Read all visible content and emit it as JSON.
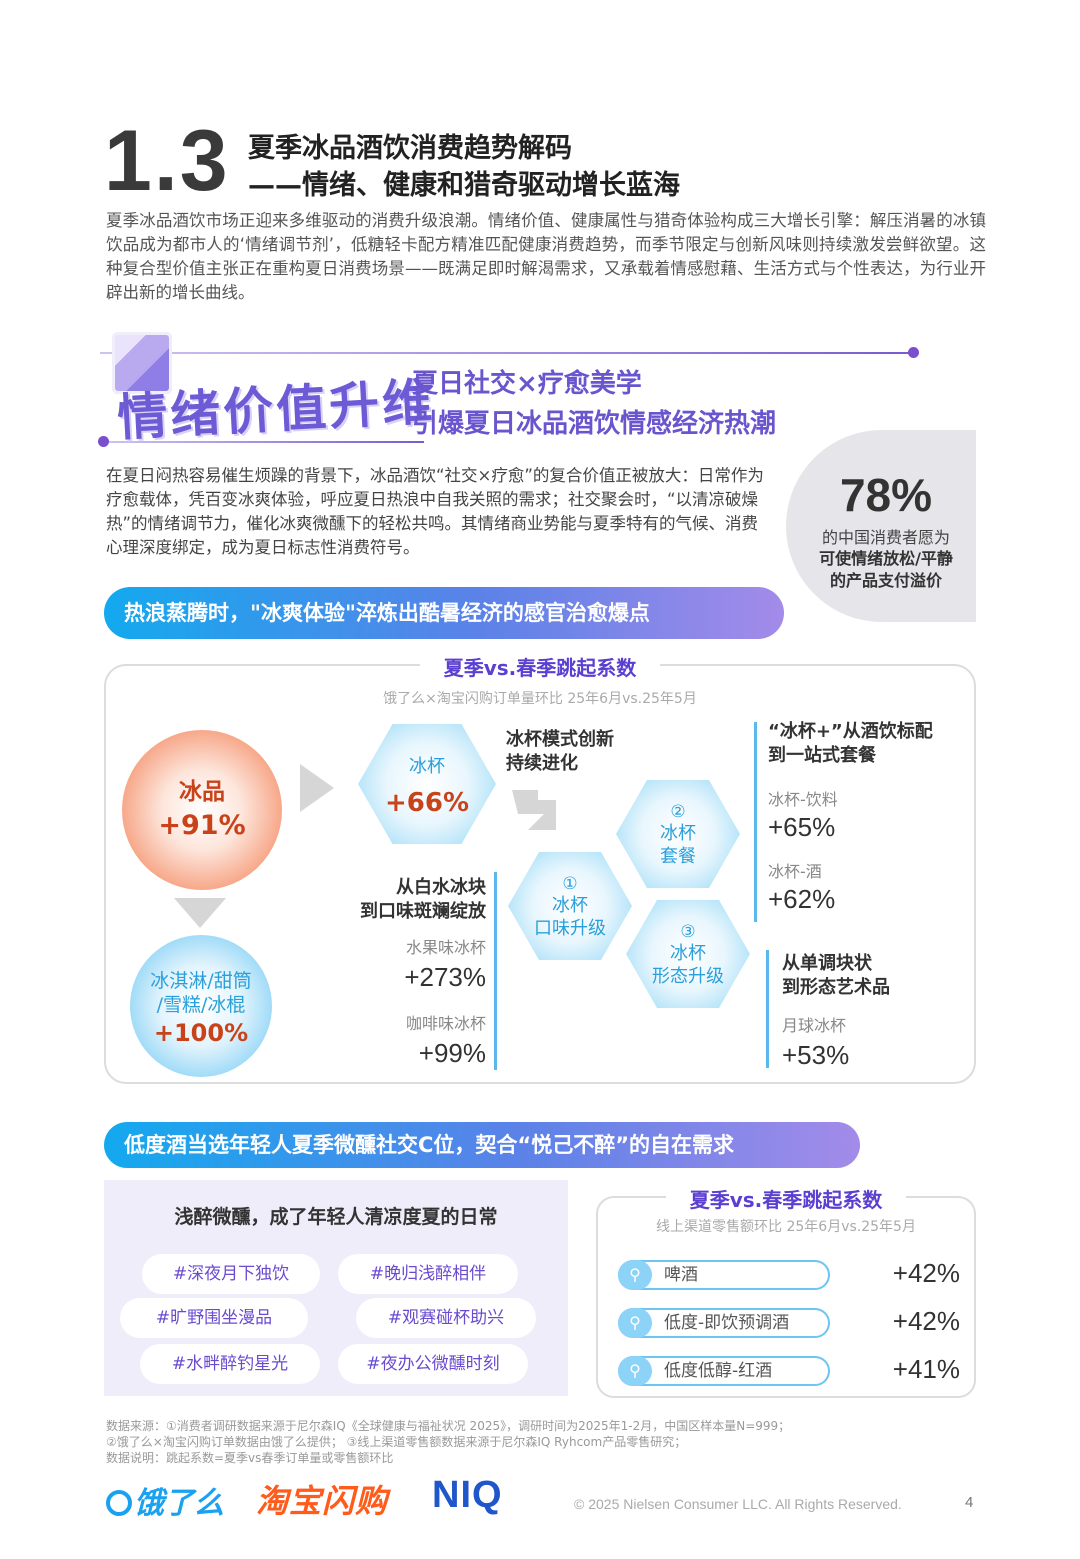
{
  "header": {
    "section_number": "1.3",
    "title_line1": "夏季冰品酒饮消费趋势解码",
    "title_line2": "——情绪、健康和猎奇驱动增长蓝海",
    "intro": "夏季冰品酒饮市场正迎来多维驱动的消费升级浪潮。情绪价值、健康属性与猎奇体验构成三大增长引擎：解压消暑的冰镇饮品成为都市人的‘情绪调节剂’，低糖轻卡配方精准匹配健康消费趋势，而季节限定与创新风味则持续激发尝鲜欲望。这种复合型价值主张正在重构夏日消费场景——既满足即时解渴需求，又承载着情感慰藉、生活方式与个性表达，为行业开辟出新的增长曲线。"
  },
  "banner": {
    "big_text": "情绪价值升维",
    "sub_line1": "夏日社交×疗愈美学",
    "sub_line2": "引爆夏日冰品酒饮情感经济热潮"
  },
  "emotion": {
    "paragraph": "在夏日闷热容易催生烦躁的背景下，冰品酒饮“社交×疗愈”的复合价值正被放大：日常作为疗愈载体，凭百变冰爽体验，呼应夏日热浪中自我关照的需求；社交聚会时，“以清凉破燥热”的情绪调节力，催化冰爽微醺下的轻松共鸣。其情绪商业势能与夏季特有的气候、消费心理深度绑定，成为夏日标志性消费符号。",
    "stat_value": "78%",
    "stat_line1": "的中国消费者愿为",
    "stat_line2": "可使情绪放松/平静",
    "stat_line3": "的产品支付溢价"
  },
  "section1": {
    "headline": "热浪蒸腾时，\"冰爽体验\"淬炼出酷暑经济的感官治愈爆点",
    "box_title": "夏季vs.春季跳起系数",
    "box_subtitle": "饿了么×淘宝闪购订单量环比 25年6月vs.25年5月",
    "ice_product_label": "冰品",
    "ice_product_value": "+91%",
    "icecream_label": "冰淇淋/甜筒/雪糕/冰棍",
    "icecream_line1": "冰淇淋/甜筒",
    "icecream_line2": "/雪糕/冰棍",
    "icecream_value": "+100%",
    "icecup_label": "冰杯",
    "icecup_value": "+66%",
    "innovation_line1": "冰杯模式创新",
    "innovation_line2": "持续进化",
    "hex1_num": "①",
    "hex1_line1": "冰杯",
    "hex1_line2": "口味升级",
    "hex2_num": "②",
    "hex2_line1": "冰杯",
    "hex2_line2": "套餐",
    "hex3_num": "③",
    "hex3_line1": "冰杯",
    "hex3_line2": "形态升级",
    "flavor_title_line1": "从白水冰块",
    "flavor_title_line2": "到口味斑斓绽放",
    "flavor_items": [
      {
        "label": "水果味冰杯",
        "value": "+273%"
      },
      {
        "label": "咖啡味冰杯",
        "value": "+99%"
      }
    ],
    "combo_title_line1": "“冰杯+”从酒饮标配",
    "combo_title_line2": "到一站式套餐",
    "combo_items": [
      {
        "label": "冰杯-饮料",
        "value": "+65%"
      },
      {
        "label": "冰杯-酒",
        "value": "+62%"
      }
    ],
    "shape_title_line1": "从单调块状",
    "shape_title_line2": "到形态艺术品",
    "shape_items": [
      {
        "label": "月球冰杯",
        "value": "+53%"
      }
    ]
  },
  "section2": {
    "headline": "低度酒当选年轻人夏季微醺社交C位，契合“悦己不醉”的自在需求",
    "panel_title": "浅醉微醺，成了年轻人清凉度夏的日常",
    "tags": [
      "#深夜月下独饮",
      "#晚归浅醉相伴",
      "#旷野围坐漫品",
      "#观赛碰杯助兴",
      "#水畔醉钓星光",
      "#夜办公微醺时刻"
    ],
    "box_title": "夏季vs.春季跳起系数",
    "box_subtitle": "线上渠道零售额环比 25年6月vs.25年5月",
    "bars": [
      {
        "label": "啤酒",
        "value": "+42%"
      },
      {
        "label": "低度-即饮预调酒",
        "value": "+42%"
      },
      {
        "label": "低度低醇-红酒",
        "value": "+41%"
      }
    ]
  },
  "footer": {
    "source_line1": "数据来源：①消费者调研数据来源于尼尔森IQ《全球健康与福祉状况 2025》，调研时间为2025年1-2月，中国区样本量N=999；",
    "source_line2": "②饿了么×淘宝闪购订单数据由饿了么提供； ③线上渠道零售额数据来源于尼尔森IQ Ryhcom产品零售研究；",
    "source_line3": "数据说明：跳起系数=夏季vs春季订单量或零售额环比",
    "logo_eleme": "饿了么",
    "logo_taobao": "淘宝闪购",
    "logo_niq": "NIQ",
    "copyright": "© 2025 Nielsen Consumer LLC. All Rights Reserved.",
    "page_number": "4"
  },
  "colors": {
    "accent_purple": "#6a55cf",
    "accent_blue": "#13a9ee",
    "accent_orange": "#c8431a"
  }
}
